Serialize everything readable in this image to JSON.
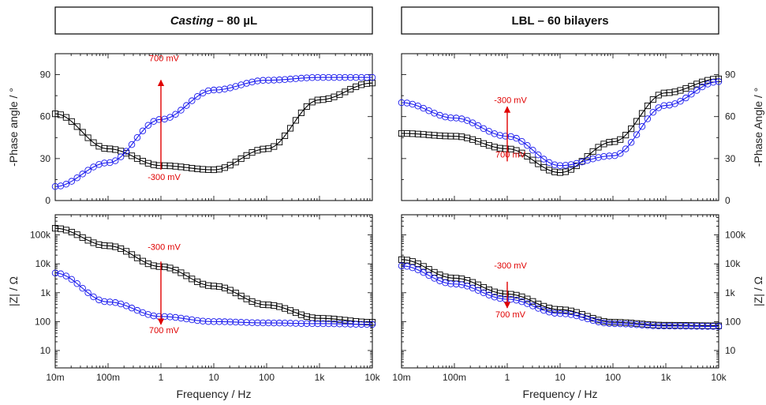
{
  "chart_data": [
    {
      "type": "scatter",
      "title_italic": "Casting",
      "title_rest": " – 80 µL",
      "ylabel": "-Phase angle / °",
      "xscale": "log",
      "xlim": [
        0.01,
        10000
      ],
      "ylim": [
        0,
        105
      ],
      "yticks": [
        0,
        30,
        60,
        90
      ],
      "ytick_labels": [
        "0",
        "30",
        "60",
        "90"
      ],
      "ytick_side": "left",
      "annotations": [
        {
          "text": "700 mV",
          "x": 1,
          "y": 102,
          "align": "top"
        },
        {
          "text": "-300 mV",
          "x": 1,
          "y": 17,
          "align": "bottom"
        }
      ],
      "arrow": {
        "x": 1,
        "from_y": 22,
        "to_y": 86
      },
      "series": [
        {
          "name": "",
          "color": "#000000",
          "marker": "square",
          "x": [
            0.01,
            0.1,
            1,
            10,
            100,
            1000,
            10000
          ],
          "y": [
            62,
            37,
            25,
            22,
            37,
            72,
            84
          ]
        },
        {
          "name": "",
          "color": "#1a1aee",
          "marker": "circle",
          "x": [
            0.01,
            0.1,
            1,
            10,
            100,
            1000,
            10000
          ],
          "y": [
            10,
            27,
            58,
            79,
            86,
            88,
            88
          ]
        }
      ]
    },
    {
      "type": "scatter",
      "title_italic": "",
      "title_rest": "LBL – 60 bilayers",
      "ylabel": "-Phase Angle / °",
      "xscale": "log",
      "xlim": [
        0.01,
        10000
      ],
      "ylim": [
        0,
        105
      ],
      "yticks": [
        0,
        30,
        60,
        90
      ],
      "ytick_labels": [
        "0",
        "30",
        "60",
        "90"
      ],
      "ytick_side": "right",
      "annotations": [
        {
          "text": "-300 mV",
          "x": 1,
          "y": 72,
          "align": "top"
        },
        {
          "text": "700 mV",
          "x": 1,
          "y": 33,
          "align": "bottom"
        }
      ],
      "arrow": {
        "x": 1,
        "from_y": 28,
        "to_y": 67
      },
      "series": [
        {
          "name": "",
          "color": "#000000",
          "marker": "square",
          "x": [
            0.01,
            0.1,
            1,
            10,
            100,
            1000,
            10000
          ],
          "y": [
            48,
            46,
            37,
            20,
            42,
            77,
            87
          ]
        },
        {
          "name": "",
          "color": "#1a1aee",
          "marker": "circle",
          "x": [
            0.01,
            0.1,
            1,
            10,
            100,
            1000,
            10000
          ],
          "y": [
            70,
            59,
            46,
            25,
            32,
            68,
            85
          ]
        }
      ]
    },
    {
      "type": "scatter",
      "ylabel": "|Z| / Ω",
      "xlabel": "Frequency / Hz",
      "xscale": "log",
      "yscale": "log",
      "xlim": [
        0.01,
        10000
      ],
      "ylim": [
        2.5,
        500000
      ],
      "yticks": [
        10,
        100,
        1000,
        10000,
        100000
      ],
      "ytick_labels": [
        "10",
        "100",
        "1k",
        "10k",
        "100k"
      ],
      "ytick_side": "left",
      "xticks": [
        0.01,
        0.1,
        1,
        10,
        100,
        1000,
        10000
      ],
      "xtick_labels": [
        "10m",
        "100m",
        "1",
        "10",
        "100",
        "1k",
        "10k"
      ],
      "annotations": [
        {
          "text": "-300 mV",
          "x": 1,
          "y": 30000,
          "align": "top"
        },
        {
          "text": "700 mV",
          "x": 1,
          "y": 40,
          "align": "bottom"
        }
      ],
      "arrow": {
        "x": 1,
        "from_y": 12000,
        "to_y": 80
      },
      "series": [
        {
          "name": "",
          "color": "#000000",
          "marker": "square",
          "x": [
            0.01,
            0.1,
            1,
            10,
            100,
            1000,
            10000
          ],
          "y": [
            170000,
            42000,
            8000,
            1700,
            380,
            130,
            95
          ]
        },
        {
          "name": "",
          "color": "#1a1aee",
          "marker": "circle",
          "x": [
            0.01,
            0.1,
            1,
            10,
            100,
            1000,
            10000
          ],
          "y": [
            4800,
            480,
            150,
            100,
            90,
            85,
            80
          ]
        }
      ]
    },
    {
      "type": "scatter",
      "ylabel": "|Z| / Ω",
      "xlabel": "Frequency / Hz",
      "xscale": "log",
      "yscale": "log",
      "xlim": [
        0.01,
        10000
      ],
      "ylim": [
        2.5,
        500000
      ],
      "yticks": [
        10,
        100,
        1000,
        10000,
        100000
      ],
      "ytick_labels": [
        "10",
        "100",
        "1k",
        "10k",
        "100k"
      ],
      "ytick_side": "right",
      "xticks": [
        0.01,
        0.1,
        1,
        10,
        100,
        1000,
        10000
      ],
      "xtick_labels": [
        "10m",
        "100m",
        "1",
        "10",
        "100",
        "1k",
        "10k"
      ],
      "annotations": [
        {
          "text": "-300 mV",
          "x": 1,
          "y": 7000,
          "align": "top"
        },
        {
          "text": "700 mV",
          "x": 1,
          "y": 140,
          "align": "bottom"
        }
      ],
      "arrow": {
        "x": 1,
        "from_y": 2400,
        "to_y": 300
      },
      "series": [
        {
          "name": "",
          "color": "#000000",
          "marker": "square",
          "x": [
            0.01,
            0.1,
            1,
            10,
            100,
            1000,
            10000
          ],
          "y": [
            14000,
            3200,
            900,
            260,
            95,
            75,
            72
          ]
        },
        {
          "name": "",
          "color": "#1a1aee",
          "marker": "circle",
          "x": [
            0.01,
            0.1,
            1,
            10,
            100,
            1000,
            10000
          ],
          "y": [
            8500,
            2000,
            600,
            190,
            85,
            70,
            68
          ]
        }
      ]
    }
  ]
}
